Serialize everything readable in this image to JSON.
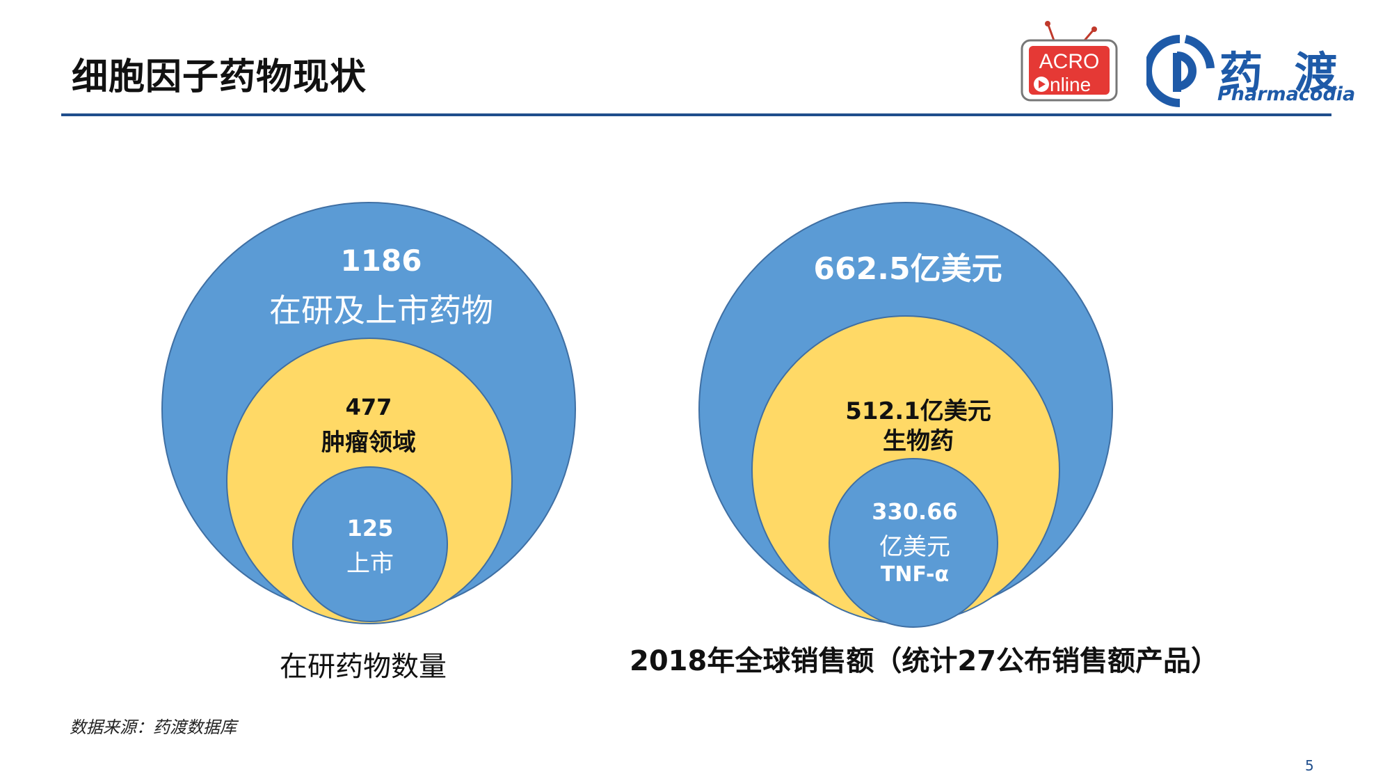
{
  "header": {
    "title": "细胞因子药物现状"
  },
  "logos": {
    "acro_line1": "ACRO",
    "acro_line2": "nline",
    "pharma_cn": "药 渡",
    "pharma_en": "Pharmacodia"
  },
  "left_diagram": {
    "outer": {
      "value": "1186",
      "label": "在研及上市药物"
    },
    "middle": {
      "value": "477",
      "label": "肿瘤领域"
    },
    "inner": {
      "value": "125",
      "label": "上市"
    },
    "caption": "在研药物数量"
  },
  "right_diagram": {
    "outer": {
      "value": "662.5亿美元"
    },
    "middle": {
      "value": "512.1亿美元",
      "label": "生物药"
    },
    "inner": {
      "value": "330.66",
      "unit": "亿美元",
      "label": "TNF-α"
    },
    "caption": "2018年全球销售额（统计27公布销售额产品）"
  },
  "footer": {
    "source": "数据来源：药渡数据库",
    "page_number": "5"
  },
  "colors": {
    "outer_circle": "#5b9bd5",
    "middle_circle": "#ffd966",
    "inner_circle": "#5b9bd5",
    "circle_stroke": "#3f6fa3",
    "accent_rule": "#1f4e8c",
    "brand_blue": "#1e5aa8",
    "acro_red": "#e53935"
  }
}
